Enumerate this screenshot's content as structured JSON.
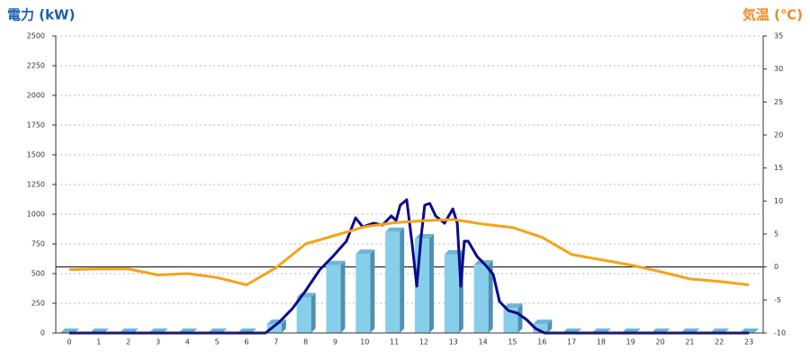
{
  "chart_data": {
    "type": "bar",
    "title_left": "電力 (kW)",
    "title_right": "気温 (℃)",
    "categories": [
      "0",
      "1",
      "2",
      "3",
      "4",
      "5",
      "6",
      "7",
      "8",
      "9",
      "10",
      "11",
      "12",
      "13",
      "14",
      "15",
      "16",
      "17",
      "18",
      "19",
      "20",
      "21",
      "22",
      "23"
    ],
    "ylim": [
      0,
      2500
    ],
    "yticks": [
      0,
      250,
      500,
      750,
      1000,
      1250,
      1500,
      1750,
      2000,
      2250,
      2500
    ],
    "y2lim": [
      -10,
      35
    ],
    "y2ticks": [
      -10,
      -5,
      0,
      5,
      10,
      15,
      20,
      25,
      30,
      35
    ],
    "grid": true,
    "zero_line_y2": 0,
    "series": [
      {
        "type": "bar",
        "color": "#87ceeb",
        "values": [
          0,
          0,
          0,
          0,
          0,
          0,
          0,
          76,
          300,
          570,
          665,
          850,
          795,
          660,
          575,
          210,
          75,
          0,
          0,
          0,
          0,
          0,
          0,
          0
        ]
      },
      {
        "type": "line",
        "color": "#0a0a8c",
        "x": [
          0,
          6.64,
          7.1,
          7.55,
          8.0,
          8.47,
          8.92,
          9.38,
          9.69,
          9.93,
          10.3,
          10.6,
          10.9,
          11.06,
          11.2,
          11.42,
          11.6,
          11.76,
          11.9,
          12.03,
          12.2,
          12.4,
          12.7,
          12.98,
          13.13,
          13.25,
          13.37,
          13.5,
          13.8,
          14.1,
          14.35,
          14.56,
          14.86,
          15.17,
          15.47,
          15.78,
          16.08,
          23
        ],
        "values": [
          0,
          0,
          91,
          205,
          356,
          530,
          644,
          773,
          970,
          894,
          924,
          909,
          985,
          947,
          1076,
          1121,
          758,
          394,
          795,
          1076,
          1091,
          985,
          924,
          1045,
          924,
          394,
          773,
          773,
          644,
          568,
          492,
          265,
          189,
          167,
          114,
          38,
          0,
          0
        ]
      },
      {
        "type": "line",
        "axis": "y2",
        "color": "#f5a31a",
        "values": [
          -0.4,
          -0.3,
          -0.3,
          -1.2,
          -1.0,
          -1.6,
          -2.7,
          -0.1,
          3.5,
          4.8,
          6.1,
          6.7,
          7.0,
          7.2,
          6.5,
          6.0,
          4.5,
          1.9,
          1.1,
          0.3,
          -0.7,
          -1.8,
          -2.2,
          -2.7
        ]
      }
    ]
  }
}
